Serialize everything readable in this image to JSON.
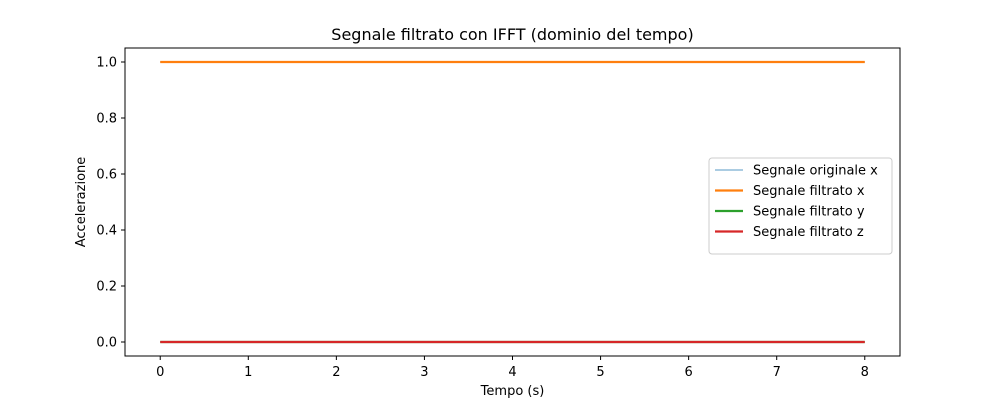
{
  "chart_data": {
    "type": "line",
    "title": "Segnale filtrato con IFFT (dominio del tempo)",
    "xlabel": "Tempo (s)",
    "ylabel": "Accelerazione",
    "xlim": [
      -0.4,
      8.4
    ],
    "ylim": [
      -0.05,
      1.05
    ],
    "xticks": [
      0,
      1,
      2,
      3,
      4,
      5,
      6,
      7,
      8
    ],
    "xtick_labels": [
      "0",
      "1",
      "2",
      "3",
      "4",
      "5",
      "6",
      "7",
      "8"
    ],
    "yticks": [
      0.0,
      0.2,
      0.4,
      0.6,
      0.8,
      1.0
    ],
    "ytick_labels": [
      "0.0",
      "0.2",
      "0.4",
      "0.6",
      "0.8",
      "1.0"
    ],
    "grid": false,
    "legend_position": "center-right",
    "series": [
      {
        "name": "Segnale originale x",
        "color": "#8fbbd9",
        "width": "thin",
        "x": [
          0,
          8
        ],
        "y": [
          1.0,
          1.0
        ]
      },
      {
        "name": "Segnale filtrato x",
        "color": "#ff7f0e",
        "width": "thick",
        "x": [
          0,
          8
        ],
        "y": [
          1.0,
          1.0
        ]
      },
      {
        "name": "Segnale filtrato y",
        "color": "#2ca02c",
        "width": "thick",
        "x": [
          0,
          8
        ],
        "y": [
          0.0,
          0.0
        ]
      },
      {
        "name": "Segnale filtrato z",
        "color": "#d62728",
        "width": "thick",
        "x": [
          0,
          8
        ],
        "y": [
          0.0,
          0.0
        ]
      }
    ]
  }
}
